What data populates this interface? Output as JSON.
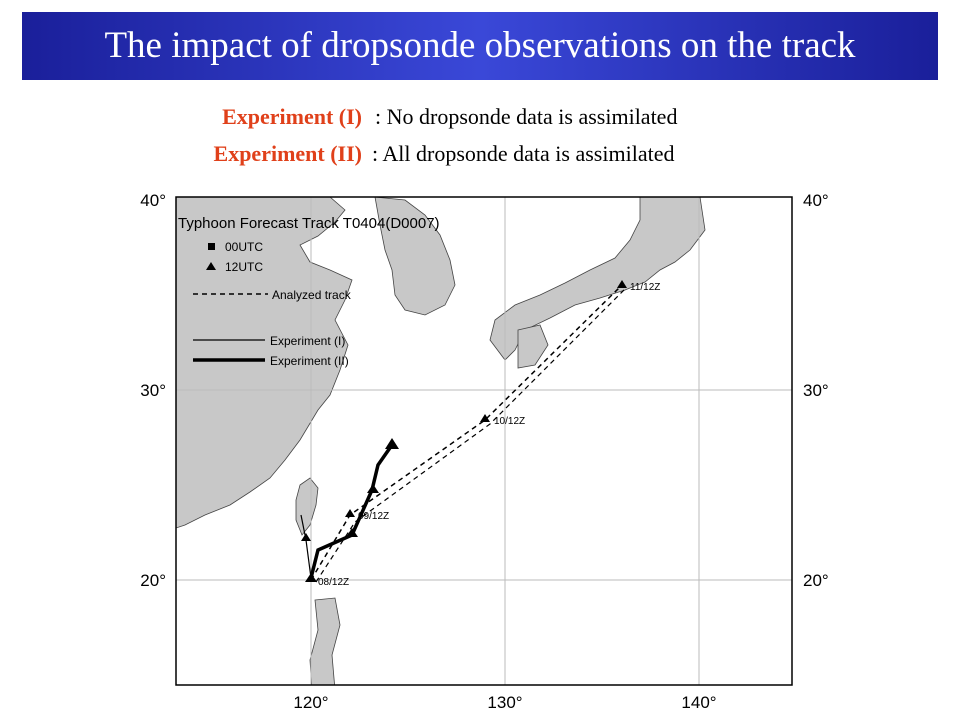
{
  "header": {
    "title": "The impact of dropsonde observations on the track"
  },
  "experiments": [
    {
      "name": "Experiment (I)",
      "description": ": No dropsonde data is assimilated"
    },
    {
      "name": "Experiment (II)",
      "description": ": All dropsonde data is assimilated"
    }
  ],
  "map": {
    "title": "Typhoon Forecast Track T0404(D0007)",
    "legend": [
      "00UTC",
      "12UTC",
      "Analyzed track",
      "Experiment (I)",
      "Experiment (II)"
    ],
    "lat_labels": [
      "40°",
      "30°",
      "20°"
    ],
    "lon_labels": [
      "120°",
      "130°",
      "140°"
    ],
    "track_labels": [
      "11/12Z",
      "10/12Z",
      "09/12Z",
      "08/12Z"
    ]
  }
}
